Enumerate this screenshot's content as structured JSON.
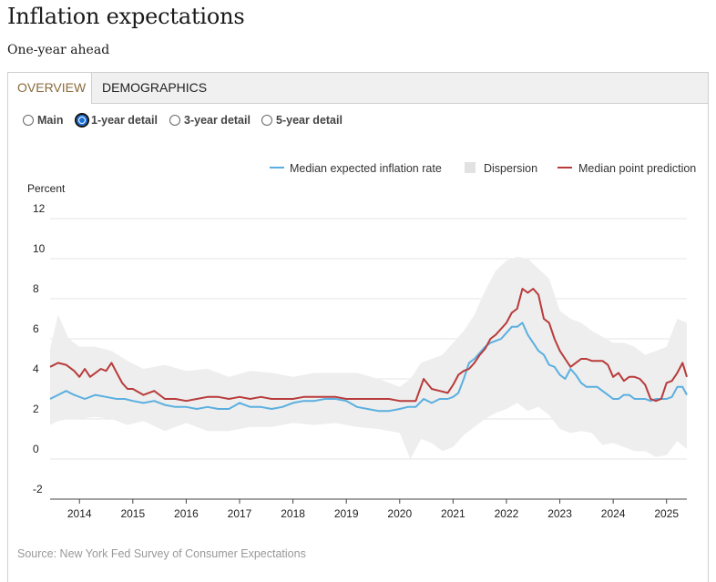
{
  "page": {
    "title": "Inflation expectations",
    "subtitle": "One-year ahead",
    "source": "Source: New York Fed Survey of Consumer Expectations"
  },
  "tabs": [
    {
      "label": "OVERVIEW",
      "active": true
    },
    {
      "label": "DEMOGRAPHICS",
      "active": false
    }
  ],
  "radios": [
    {
      "label": "Main",
      "selected": false
    },
    {
      "label": "1-year detail",
      "selected": true
    },
    {
      "label": "3-year detail",
      "selected": false
    },
    {
      "label": "5-year detail",
      "selected": false
    }
  ],
  "colors": {
    "median_expected": "#5aafe0",
    "median_point": "#b83b3b",
    "dispersion": "#eeeeee",
    "grid": "#e6e6e6",
    "tab_active_text": "#8a6a3c",
    "radio_selected": "#1a6fd6"
  },
  "chart_data": {
    "type": "line",
    "title": "",
    "ylabel": "Percent",
    "xlabel": "",
    "ylim": [
      -2,
      12
    ],
    "xlim": [
      2013.45,
      2025.38
    ],
    "yticks": [
      -2,
      0,
      2,
      4,
      6,
      8,
      10,
      12
    ],
    "xticks": [
      2014,
      2015,
      2016,
      2017,
      2018,
      2019,
      2020,
      2021,
      2022,
      2023,
      2024,
      2025
    ],
    "grid": true,
    "legend_position": "top-right",
    "legend": [
      {
        "label": "Median expected inflation rate",
        "kind": "line",
        "color": "#5aafe0"
      },
      {
        "label": "Dispersion",
        "kind": "band",
        "color": "#eeeeee"
      },
      {
        "label": "Median point prediction",
        "kind": "line",
        "color": "#b83b3b"
      }
    ],
    "series": [
      {
        "name": "Median expected inflation rate",
        "x": [
          2013.45,
          2013.6,
          2013.75,
          2013.9,
          2014.1,
          2014.3,
          2014.5,
          2014.7,
          2014.85,
          2015.0,
          2015.2,
          2015.4,
          2015.6,
          2015.8,
          2016.0,
          2016.2,
          2016.4,
          2016.6,
          2016.8,
          2017.0,
          2017.2,
          2017.4,
          2017.6,
          2017.8,
          2018.0,
          2018.2,
          2018.4,
          2018.6,
          2018.8,
          2019.0,
          2019.2,
          2019.4,
          2019.6,
          2019.8,
          2020.0,
          2020.15,
          2020.3,
          2020.45,
          2020.6,
          2020.75,
          2020.9,
          2021.0,
          2021.1,
          2021.2,
          2021.3,
          2021.4,
          2021.5,
          2021.6,
          2021.7,
          2021.8,
          2021.9,
          2022.0,
          2022.1,
          2022.2,
          2022.3,
          2022.4,
          2022.5,
          2022.6,
          2022.7,
          2022.8,
          2022.9,
          2023.0,
          2023.1,
          2023.2,
          2023.3,
          2023.4,
          2023.5,
          2023.6,
          2023.7,
          2023.8,
          2023.9,
          2024.0,
          2024.1,
          2024.2,
          2024.3,
          2024.4,
          2024.5,
          2024.6,
          2024.7,
          2024.8,
          2024.9,
          2025.0,
          2025.1,
          2025.2,
          2025.3,
          2025.38
        ],
        "values": [
          3.0,
          3.2,
          3.4,
          3.2,
          3.0,
          3.2,
          3.1,
          3.0,
          3.0,
          2.9,
          2.8,
          2.9,
          2.7,
          2.6,
          2.6,
          2.5,
          2.6,
          2.5,
          2.5,
          2.8,
          2.6,
          2.6,
          2.5,
          2.6,
          2.8,
          2.9,
          2.9,
          3.0,
          3.0,
          2.9,
          2.6,
          2.5,
          2.4,
          2.4,
          2.5,
          2.6,
          2.6,
          3.0,
          2.8,
          3.0,
          3.0,
          3.1,
          3.3,
          4.0,
          4.8,
          5.0,
          5.3,
          5.6,
          5.8,
          5.9,
          6.0,
          6.3,
          6.6,
          6.6,
          6.8,
          6.2,
          5.8,
          5.4,
          5.2,
          4.7,
          4.6,
          4.2,
          4.0,
          4.5,
          4.2,
          3.8,
          3.6,
          3.6,
          3.6,
          3.4,
          3.2,
          3.0,
          3.0,
          3.2,
          3.2,
          3.0,
          3.0,
          3.0,
          2.9,
          3.0,
          3.0,
          3.0,
          3.1,
          3.6,
          3.6,
          3.2
        ]
      },
      {
        "name": "Median point prediction",
        "x": [
          2013.45,
          2013.6,
          2013.75,
          2013.9,
          2014.0,
          2014.1,
          2014.2,
          2014.3,
          2014.4,
          2014.5,
          2014.6,
          2014.7,
          2014.8,
          2014.9,
          2015.0,
          2015.2,
          2015.4,
          2015.6,
          2015.8,
          2016.0,
          2016.2,
          2016.4,
          2016.6,
          2016.8,
          2017.0,
          2017.2,
          2017.4,
          2017.6,
          2017.8,
          2018.0,
          2018.2,
          2018.4,
          2018.6,
          2018.8,
          2019.0,
          2019.2,
          2019.4,
          2019.6,
          2019.8,
          2020.0,
          2020.15,
          2020.3,
          2020.45,
          2020.6,
          2020.75,
          2020.9,
          2021.0,
          2021.1,
          2021.2,
          2021.3,
          2021.4,
          2021.5,
          2021.6,
          2021.7,
          2021.8,
          2021.9,
          2022.0,
          2022.1,
          2022.2,
          2022.3,
          2022.4,
          2022.5,
          2022.6,
          2022.7,
          2022.8,
          2022.9,
          2023.0,
          2023.1,
          2023.2,
          2023.3,
          2023.4,
          2023.5,
          2023.6,
          2023.7,
          2023.8,
          2023.9,
          2024.0,
          2024.1,
          2024.2,
          2024.3,
          2024.4,
          2024.5,
          2024.6,
          2024.7,
          2024.8,
          2024.9,
          2025.0,
          2025.1,
          2025.2,
          2025.3,
          2025.38
        ],
        "values": [
          4.6,
          4.8,
          4.7,
          4.4,
          4.1,
          4.5,
          4.1,
          4.3,
          4.5,
          4.4,
          4.8,
          4.3,
          3.8,
          3.5,
          3.5,
          3.2,
          3.4,
          3.0,
          3.0,
          2.9,
          3.0,
          3.1,
          3.1,
          3.0,
          3.1,
          3.0,
          3.1,
          3.0,
          3.0,
          3.0,
          3.1,
          3.1,
          3.1,
          3.1,
          3.0,
          3.0,
          3.0,
          3.0,
          3.0,
          2.9,
          2.9,
          2.9,
          4.0,
          3.5,
          3.4,
          3.3,
          3.7,
          4.2,
          4.4,
          4.5,
          4.8,
          5.2,
          5.5,
          6.0,
          6.2,
          6.5,
          6.8,
          7.3,
          7.5,
          8.5,
          8.3,
          8.5,
          8.2,
          7.0,
          6.8,
          6.0,
          5.4,
          5.0,
          4.6,
          4.8,
          5.0,
          5.0,
          4.9,
          4.9,
          4.9,
          4.7,
          4.1,
          4.3,
          3.9,
          4.1,
          4.1,
          4.0,
          3.7,
          3.0,
          2.9,
          3.0,
          3.8,
          3.9,
          4.3,
          4.8,
          4.1
        ]
      },
      {
        "name": "Dispersion",
        "x": [
          2013.45,
          2013.6,
          2013.8,
          2014.0,
          2014.3,
          2014.6,
          2014.9,
          2015.2,
          2015.6,
          2016.0,
          2016.4,
          2016.8,
          2017.2,
          2017.6,
          2018.0,
          2018.4,
          2018.8,
          2019.2,
          2019.6,
          2020.0,
          2020.2,
          2020.4,
          2020.6,
          2020.8,
          2021.0,
          2021.2,
          2021.4,
          2021.6,
          2021.8,
          2022.0,
          2022.2,
          2022.4,
          2022.6,
          2022.8,
          2023.0,
          2023.2,
          2023.4,
          2023.6,
          2023.8,
          2024.0,
          2024.2,
          2024.4,
          2024.6,
          2024.8,
          2025.0,
          2025.2,
          2025.38
        ],
        "upper": [
          5.5,
          7.2,
          6.0,
          5.6,
          5.6,
          5.4,
          4.9,
          4.5,
          4.7,
          4.4,
          4.5,
          4.1,
          4.4,
          4.3,
          4.1,
          4.3,
          4.3,
          4.3,
          4.0,
          3.6,
          4.0,
          4.8,
          5.0,
          5.2,
          5.8,
          6.4,
          7.2,
          8.4,
          9.4,
          9.9,
          10.1,
          10.0,
          9.5,
          9.0,
          7.4,
          7.0,
          6.8,
          6.4,
          6.1,
          5.8,
          5.8,
          5.6,
          5.2,
          5.4,
          5.6,
          7.0,
          6.8
        ],
        "lower": [
          1.7,
          1.9,
          2.0,
          2.0,
          2.1,
          2.0,
          1.7,
          1.9,
          1.4,
          1.8,
          1.4,
          1.4,
          1.6,
          1.6,
          1.8,
          1.7,
          1.8,
          1.6,
          1.5,
          1.3,
          0.0,
          1.0,
          0.8,
          0.4,
          0.6,
          1.2,
          1.6,
          2.0,
          2.3,
          2.5,
          2.8,
          2.4,
          2.6,
          2.2,
          1.5,
          1.3,
          1.4,
          1.3,
          0.7,
          0.8,
          0.6,
          0.4,
          0.4,
          0.1,
          0.2,
          0.9,
          0.5
        ]
      }
    ]
  }
}
